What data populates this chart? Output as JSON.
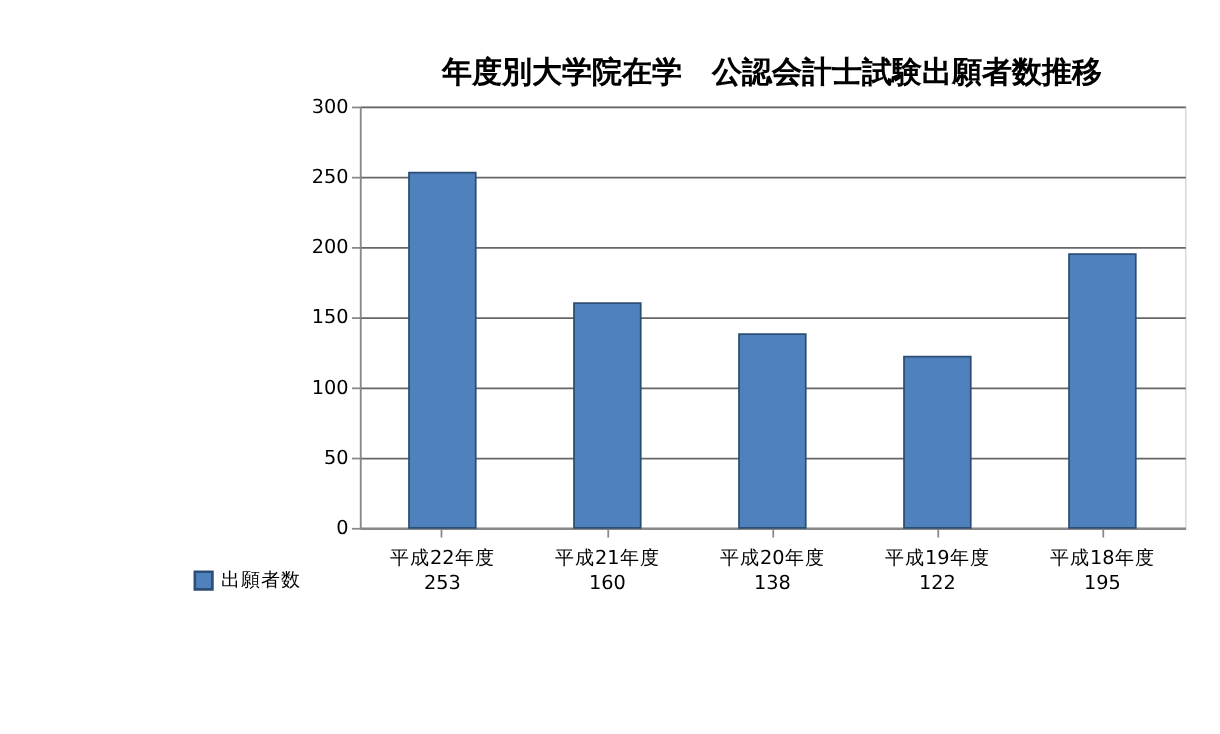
{
  "chart_data": {
    "type": "bar",
    "title": "年度別大学院在学　公認会計士試験出願者数推移",
    "categories": [
      "平成22年度",
      "平成21年度",
      "平成20年度",
      "平成19年度",
      "平成18年度"
    ],
    "series": [
      {
        "name": "出願者数",
        "color": "#4f81bd",
        "values": [
          253,
          160,
          138,
          122,
          195
        ]
      }
    ],
    "ylim": [
      0,
      300
    ],
    "yticks": [
      0,
      50,
      100,
      150,
      200,
      250,
      300
    ],
    "grid": "y",
    "legend": "bottom left",
    "data_labels": true
  }
}
